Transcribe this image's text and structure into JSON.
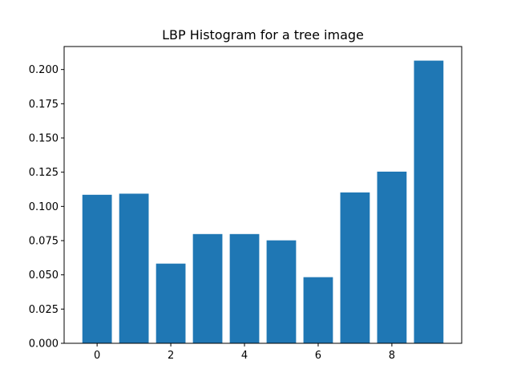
{
  "chart_data": {
    "type": "bar",
    "title": "LBP Histogram for a tree image",
    "xlabel": "",
    "ylabel": "",
    "x": [
      0,
      1,
      2,
      3,
      4,
      5,
      6,
      7,
      8,
      9
    ],
    "values": [
      0.1085,
      0.1093,
      0.0582,
      0.0798,
      0.0798,
      0.0752,
      0.0483,
      0.1102,
      0.1254,
      0.2065
    ],
    "xlim": [
      -0.895,
      9.895
    ],
    "ylim": [
      0,
      0.2168
    ],
    "xticks": [
      0,
      2,
      4,
      6,
      8
    ],
    "xtick_labels": [
      "0",
      "2",
      "4",
      "6",
      "8"
    ],
    "yticks": [
      0.0,
      0.025,
      0.05,
      0.075,
      0.1,
      0.125,
      0.15,
      0.175,
      0.2
    ],
    "ytick_labels": [
      "0.000",
      "0.025",
      "0.050",
      "0.075",
      "0.100",
      "0.125",
      "0.150",
      "0.175",
      "0.200"
    ],
    "bar_color": "#1f77b4",
    "grid": false,
    "legend": "none"
  }
}
